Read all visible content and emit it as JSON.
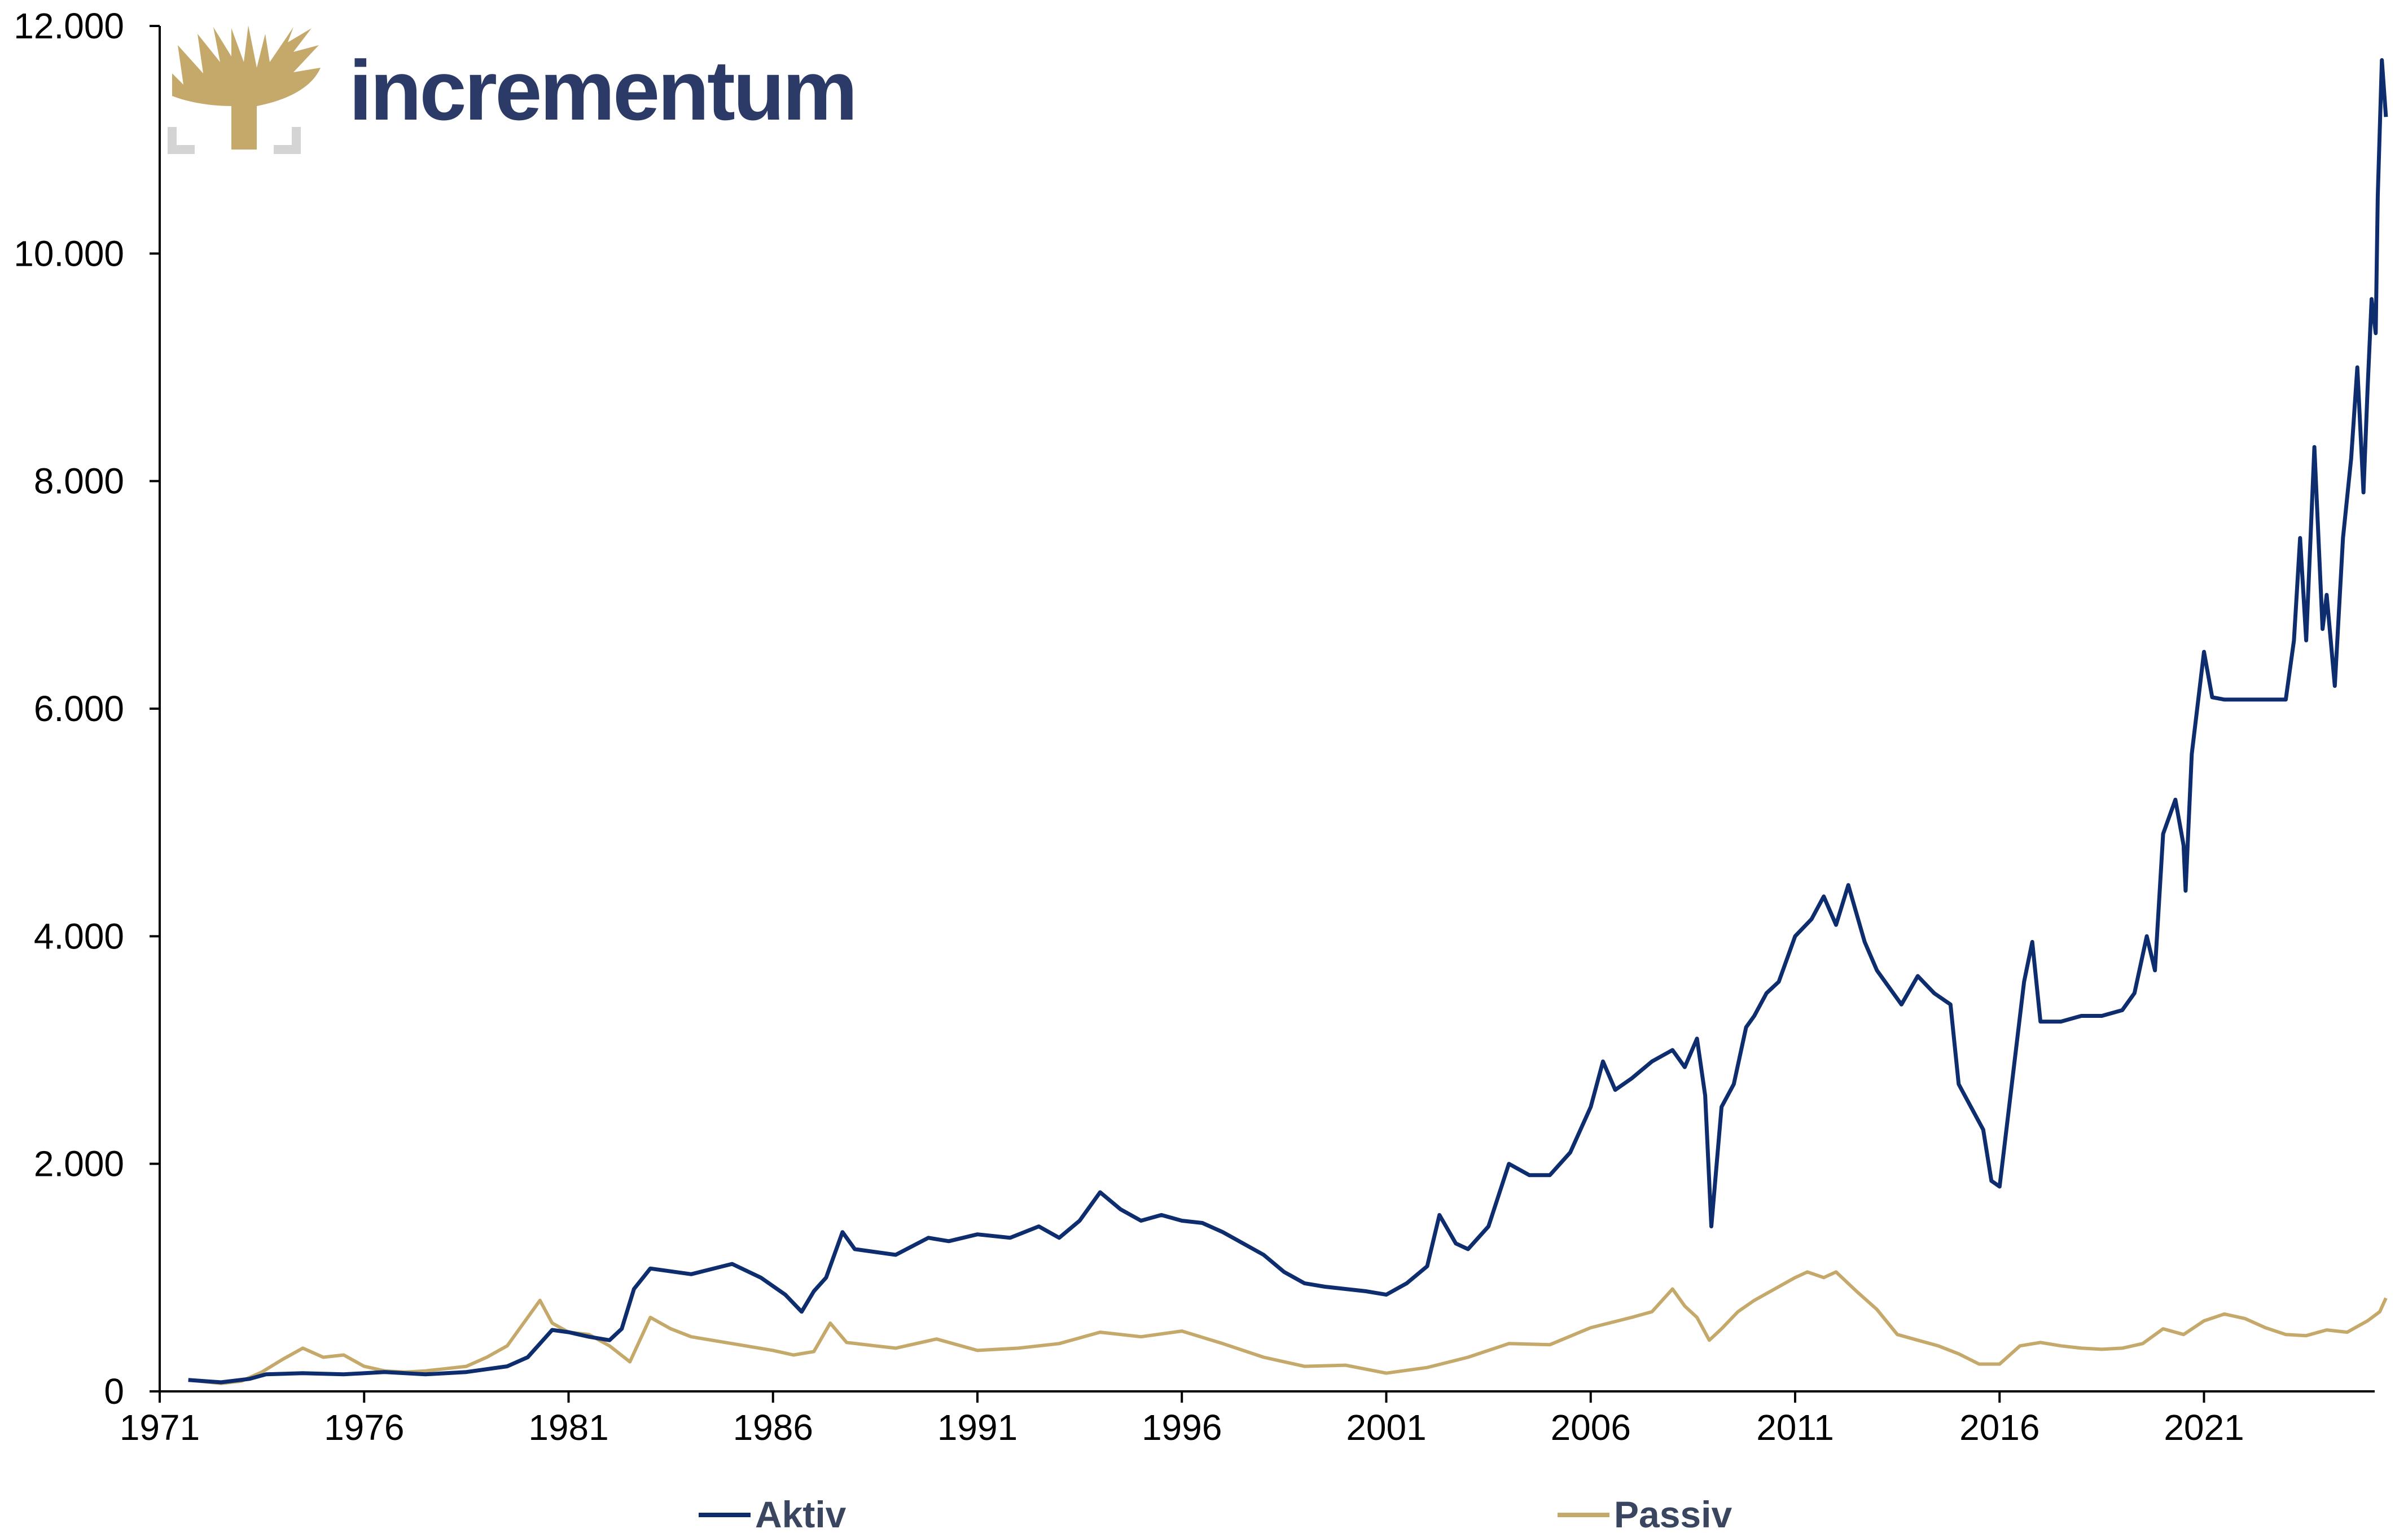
{
  "brand": {
    "name": "incrementum",
    "logo_icon": "tree-logo-icon",
    "colors": {
      "gold": "#c4a96b",
      "navy": "#2b3a67",
      "grey": "#d4d4d4"
    }
  },
  "chart_data": {
    "type": "line",
    "title": "",
    "xlabel": "",
    "ylabel": "",
    "xlim": [
      1971,
      2025.5
    ],
    "ylim": [
      0,
      12000
    ],
    "x_ticks": [
      1971,
      1976,
      1981,
      1986,
      1991,
      1996,
      2001,
      2006,
      2011,
      2016,
      2021
    ],
    "x_tick_labels": [
      "1971",
      "1976",
      "1981",
      "1986",
      "1991",
      "1996",
      "2001",
      "2006",
      "2011",
      "2016",
      "2021"
    ],
    "y_ticks": [
      0,
      2000,
      4000,
      6000,
      8000,
      10000,
      12000
    ],
    "y_tick_labels": [
      "0",
      "2.000",
      "4.000",
      "6.000",
      "8.000",
      "10.000",
      "12.000"
    ],
    "grid": false,
    "legend_position": "bottom",
    "series": [
      {
        "name": "Aktiv",
        "color": "#0d2d6e",
        "x": [
          1971.7,
          1972.5,
          1973.2,
          1973.6,
          1974.5,
          1975.5,
          1976.5,
          1977.5,
          1978.5,
          1979.5,
          1980.0,
          1980.3,
          1980.6,
          1981.0,
          1981.5,
          1982.0,
          1982.3,
          1982.6,
          1983.0,
          1984.0,
          1985.0,
          1985.7,
          1986.3,
          1986.7,
          1987.0,
          1987.3,
          1987.7,
          1988.0,
          1989.0,
          1989.8,
          1990.3,
          1991.0,
          1991.8,
          1992.5,
          1993.0,
          1993.5,
          1994.0,
          1994.5,
          1995.0,
          1995.5,
          1996.0,
          1996.5,
          1997.0,
          1997.5,
          1998.0,
          1998.5,
          1999.0,
          1999.5,
          2000.0,
          2000.5,
          2001.0,
          2001.5,
          2002.0,
          2002.3,
          2002.7,
          2003.0,
          2003.5,
          2004.0,
          2004.5,
          2005.0,
          2005.5,
          2006.0,
          2006.3,
          2006.6,
          2007.0,
          2007.5,
          2008.0,
          2008.3,
          2008.6,
          2008.8,
          2008.95,
          2009.2,
          2009.5,
          2009.8,
          2010.0,
          2010.3,
          2010.6,
          2011.0,
          2011.4,
          2011.7,
          2012.0,
          2012.3,
          2012.7,
          2013.0,
          2013.3,
          2013.6,
          2014.0,
          2014.4,
          2014.8,
          2015.0,
          2015.3,
          2015.6,
          2015.8,
          2016.0,
          2016.3,
          2016.6,
          2016.8,
          2017.0,
          2017.5,
          2018.0,
          2018.5,
          2019.0,
          2019.3,
          2019.6,
          2019.8,
          2020.0,
          2020.3,
          2020.5,
          2020.55,
          2020.7,
          2021.0,
          2021.2,
          2021.5,
          2022.0,
          2022.5,
          2023.0,
          2023.2,
          2023.35,
          2023.5,
          2023.7,
          2023.9,
          2024.0,
          2024.2,
          2024.4,
          2024.6,
          2024.75,
          2024.9,
          2025.0,
          2025.1,
          2025.2,
          2025.25,
          2025.35,
          2025.45
        ],
        "values": [
          100,
          80,
          110,
          150,
          160,
          150,
          170,
          150,
          170,
          220,
          300,
          420,
          540,
          520,
          480,
          450,
          550,
          900,
          1080,
          1030,
          1120,
          1000,
          850,
          700,
          880,
          1000,
          1400,
          1250,
          1200,
          1350,
          1320,
          1380,
          1350,
          1450,
          1350,
          1500,
          1750,
          1600,
          1500,
          1550,
          1500,
          1480,
          1400,
          1300,
          1200,
          1050,
          950,
          920,
          900,
          880,
          850,
          950,
          1100,
          1550,
          1300,
          1250,
          1450,
          2000,
          1900,
          1900,
          2100,
          2500,
          2900,
          2650,
          2750,
          2900,
          3000,
          2850,
          3100,
          2600,
          1450,
          2500,
          2700,
          3200,
          3300,
          3500,
          3600,
          4000,
          4150,
          4350,
          4100,
          4450,
          3950,
          3700,
          3550,
          3400,
          3650,
          3500,
          3400,
          2700,
          2500,
          2300,
          1850,
          1800,
          2700,
          3600,
          3950,
          3250,
          3250,
          3300,
          3300,
          3350,
          3500,
          4000,
          3700,
          4900,
          5200,
          4800,
          4400,
          5600,
          6500,
          6100,
          6080,
          6080,
          6080,
          6080,
          6600,
          7500,
          6600,
          8300,
          6700,
          7000,
          6200,
          7500,
          8200,
          9000,
          7900,
          8800,
          9600,
          9300,
          10500,
          11700,
          11200
        ]
      },
      {
        "name": "Passiv",
        "color": "#c4a96b",
        "x": [
          1971.7,
          1972.5,
          1973.0,
          1973.5,
          1974.0,
          1974.5,
          1975.0,
          1975.5,
          1976.0,
          1976.5,
          1977.0,
          1977.5,
          1978.0,
          1978.5,
          1979.0,
          1979.5,
          1980.0,
          1980.3,
          1980.6,
          1981.0,
          1981.5,
          1982.0,
          1982.5,
          1983.0,
          1983.5,
          1984.0,
          1985.0,
          1986.0,
          1986.5,
          1987.0,
          1987.4,
          1987.8,
          1988.5,
          1989.0,
          1990.0,
          1991.0,
          1992.0,
          1993.0,
          1994.0,
          1995.0,
          1996.0,
          1997.0,
          1998.0,
          1999.0,
          2000.0,
          2001.0,
          2002.0,
          2003.0,
          2004.0,
          2005.0,
          2006.0,
          2007.0,
          2007.5,
          2008.0,
          2008.3,
          2008.6,
          2008.9,
          2009.2,
          2009.6,
          2010.0,
          2010.5,
          2011.0,
          2011.3,
          2011.7,
          2012.0,
          2012.5,
          2013.0,
          2013.5,
          2014.0,
          2014.5,
          2015.0,
          2015.5,
          2016.0,
          2016.5,
          2017.0,
          2017.5,
          2018.0,
          2018.5,
          2019.0,
          2019.5,
          2020.0,
          2020.5,
          2021.0,
          2021.5,
          2022.0,
          2022.5,
          2023.0,
          2023.5,
          2024.0,
          2024.5,
          2025.0,
          2025.3,
          2025.45
        ],
        "values": [
          100,
          70,
          90,
          170,
          280,
          380,
          300,
          320,
          220,
          180,
          170,
          180,
          200,
          220,
          300,
          400,
          650,
          800,
          600,
          520,
          500,
          400,
          260,
          650,
          550,
          480,
          420,
          360,
          320,
          350,
          600,
          430,
          400,
          380,
          460,
          360,
          380,
          420,
          520,
          480,
          530,
          420,
          300,
          220,
          230,
          160,
          210,
          300,
          420,
          410,
          560,
          650,
          700,
          900,
          750,
          650,
          450,
          550,
          700,
          800,
          900,
          1000,
          1050,
          1000,
          1050,
          880,
          720,
          500,
          450,
          400,
          330,
          240,
          240,
          400,
          430,
          400,
          380,
          370,
          380,
          420,
          550,
          500,
          620,
          680,
          640,
          560,
          500,
          490,
          540,
          520,
          620,
          700,
          820
        ]
      }
    ]
  }
}
